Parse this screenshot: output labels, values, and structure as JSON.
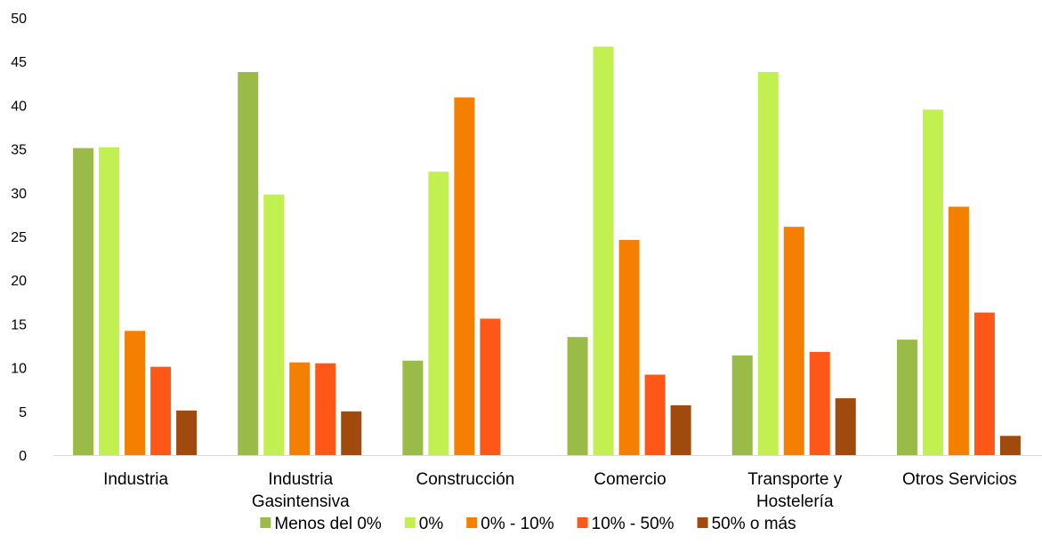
{
  "chart_data": {
    "type": "bar",
    "title": "",
    "xlabel": "",
    "ylabel": "",
    "ylim": [
      0,
      50
    ],
    "yticks": [
      "0",
      "5",
      "10",
      "15",
      "20",
      "25",
      "30",
      "35",
      "40",
      "45",
      "50"
    ],
    "grid": false,
    "legend_position": "bottom",
    "categories": [
      [
        "Industria"
      ],
      [
        "Industria",
        "Gasintensiva"
      ],
      [
        "Construcción"
      ],
      [
        "Comercio"
      ],
      [
        "Transporte y",
        "Hostelería"
      ],
      [
        "Otros Servicios"
      ]
    ],
    "series": [
      {
        "name": "Menos del 0%",
        "color": "#9BBB48",
        "values": [
          35.1,
          43.8,
          10.8,
          13.5,
          11.4,
          13.2
        ]
      },
      {
        "name": "0%",
        "color": "#C1F050",
        "values": [
          35.2,
          29.8,
          32.4,
          46.7,
          43.8,
          39.5
        ]
      },
      {
        "name": "0% - 10%",
        "color": "#F47F00",
        "values": [
          14.2,
          10.6,
          40.9,
          24.6,
          26.1,
          28.4
        ]
      },
      {
        "name": "10% - 50%",
        "color": "#FF5718",
        "values": [
          10.1,
          10.5,
          15.6,
          9.2,
          11.8,
          16.3
        ]
      },
      {
        "name": "50% o más",
        "color": "#A04A0E",
        "values": [
          5.1,
          5.0,
          0,
          5.7,
          6.5,
          2.2
        ]
      }
    ]
  }
}
